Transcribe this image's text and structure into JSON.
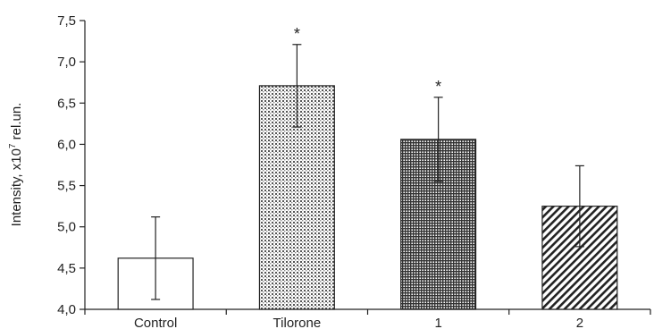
{
  "chart_data": {
    "type": "bar",
    "categories": [
      "Control",
      "Tilorone",
      "1",
      "2"
    ],
    "values": [
      4.62,
      6.71,
      6.06,
      5.25
    ],
    "errors": [
      0.5,
      0.5,
      0.51,
      0.49
    ],
    "annotations": [
      "",
      "*",
      "*",
      ""
    ],
    "ylabel_main": "Intensity, x10",
    "ylabel_sup": "7",
    "ylabel_tail": " rel.un.",
    "ylim": [
      4.0,
      7.5
    ],
    "yticks": [
      4.0,
      4.5,
      5.0,
      5.5,
      6.0,
      6.5,
      7.0,
      7.5
    ],
    "ytick_labels": [
      "4,0",
      "4,5",
      "5,0",
      "5,5",
      "6,0",
      "6,5",
      "7,0",
      "7,5"
    ],
    "bar_fills": [
      "white",
      "dots",
      "grid",
      "diagonal"
    ],
    "grid": false,
    "legend": "none"
  }
}
